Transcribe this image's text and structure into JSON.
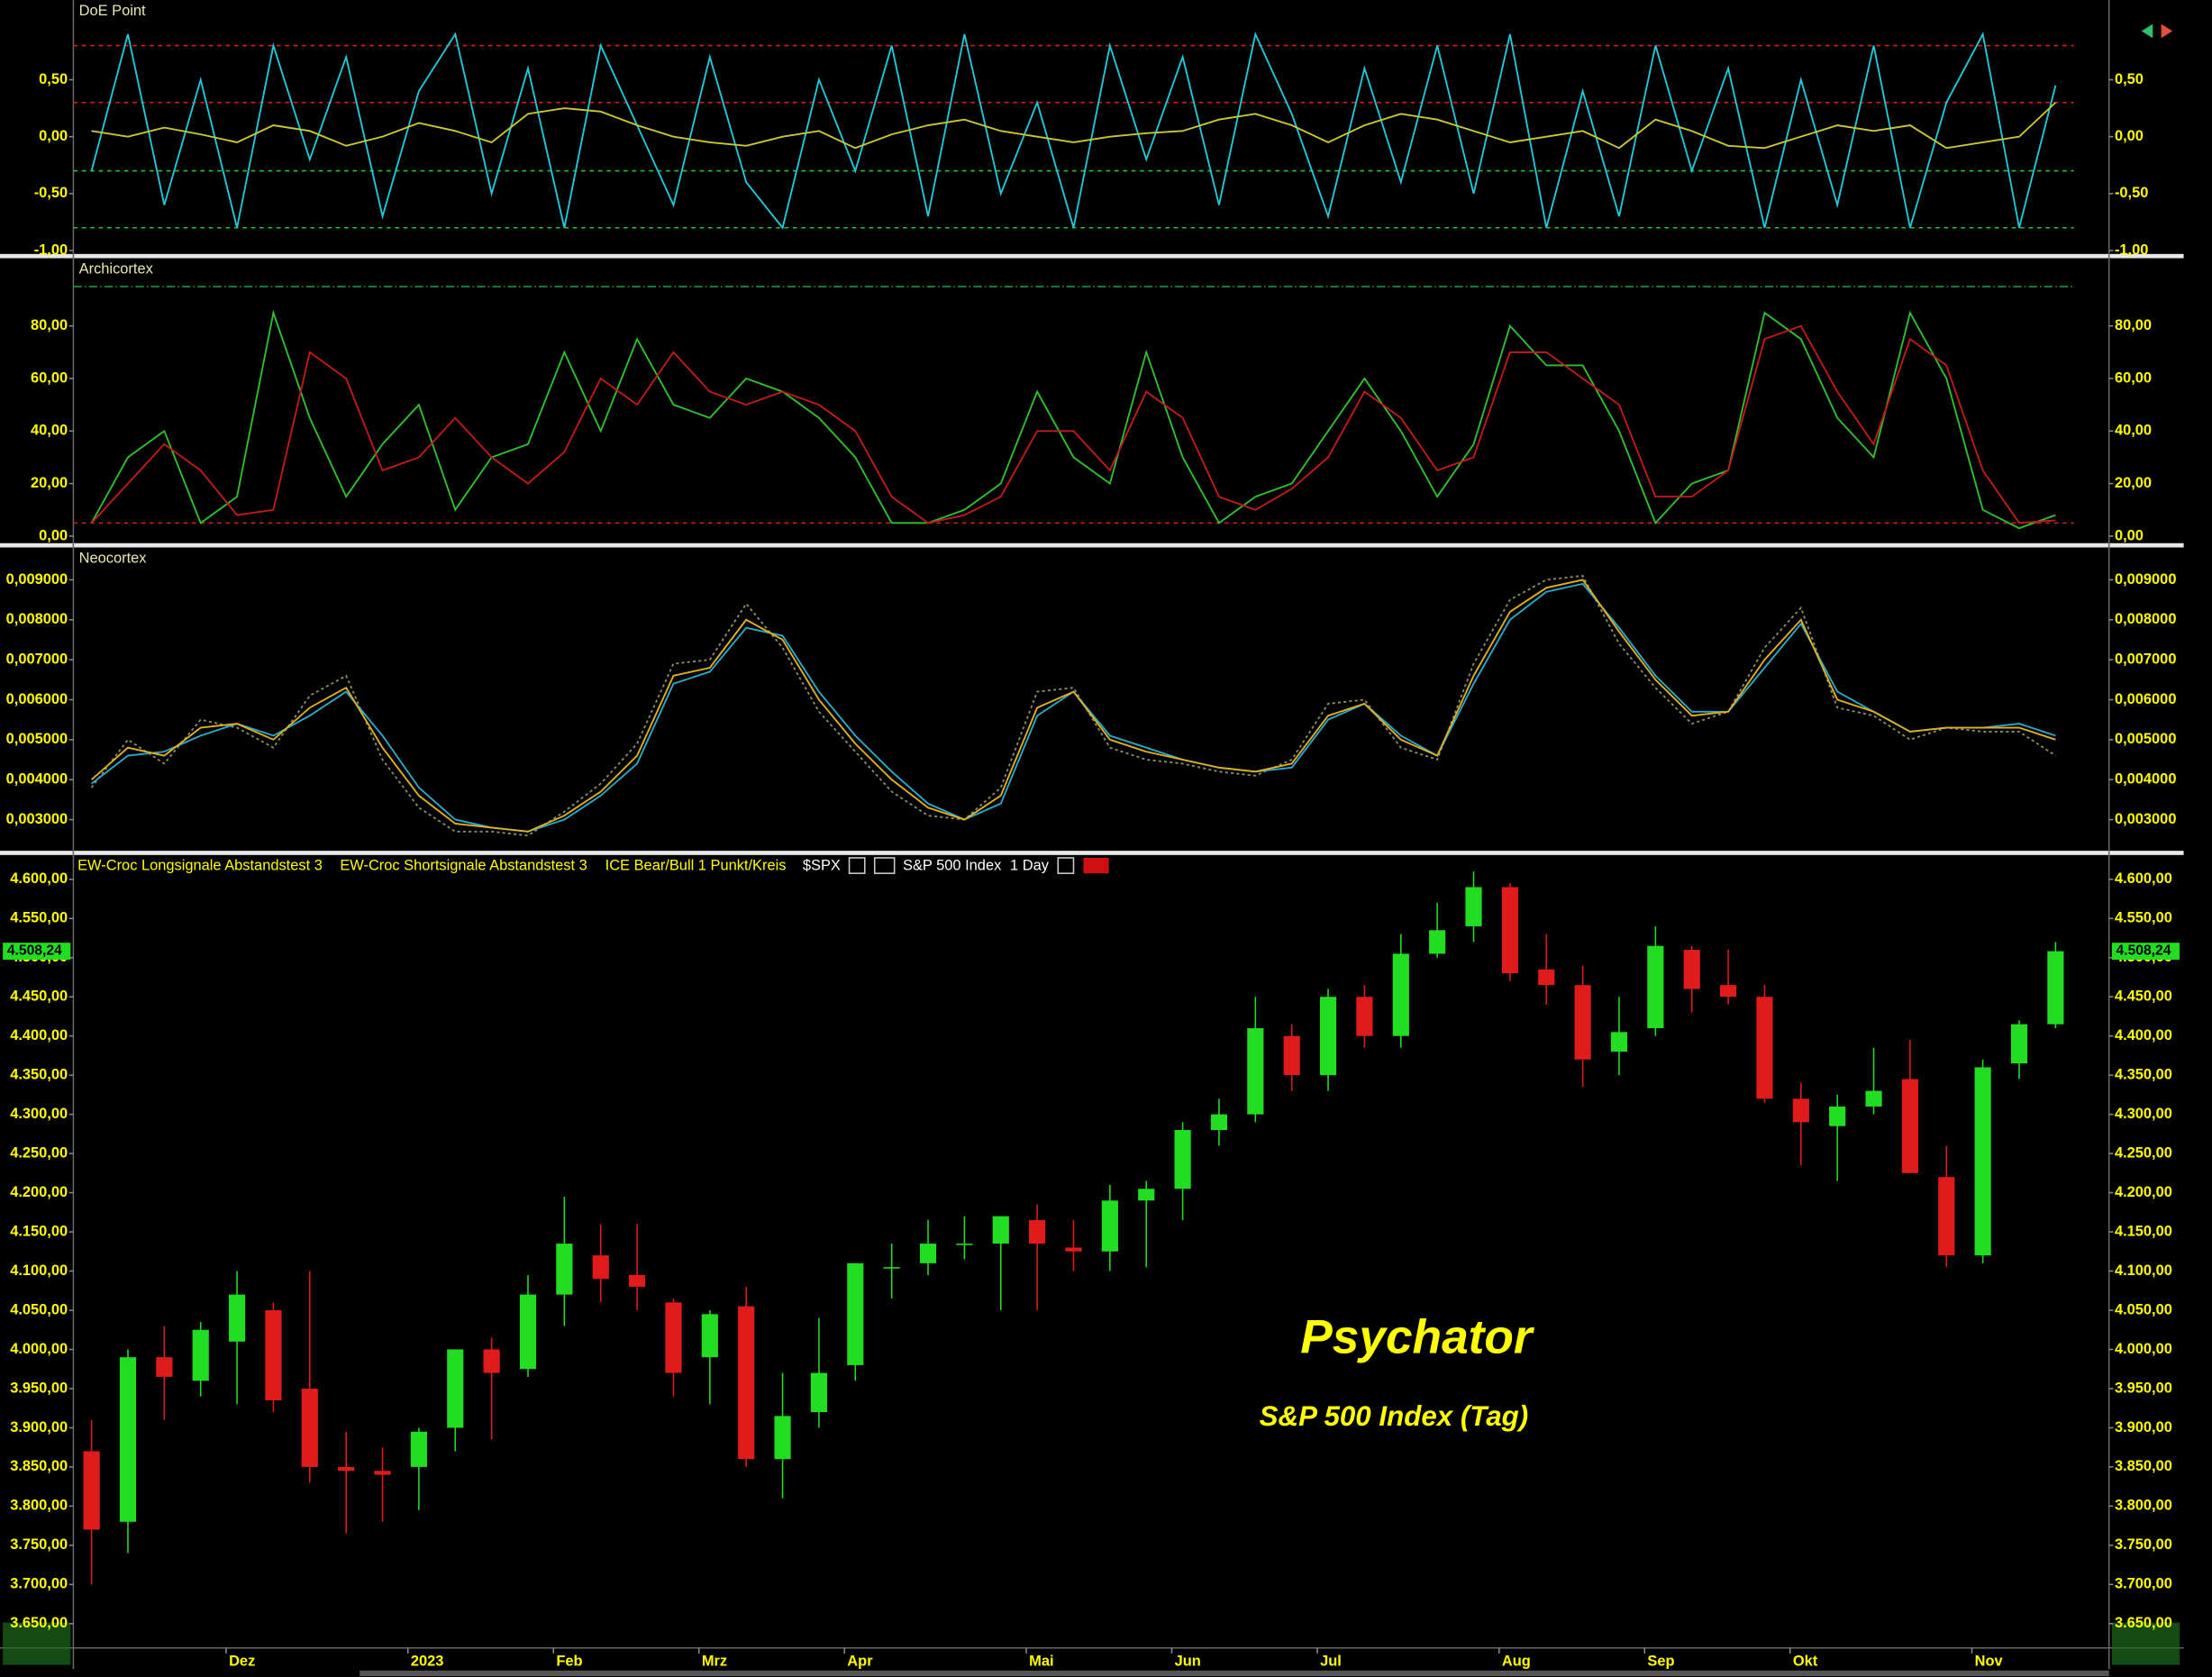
{
  "chart_data": [
    {
      "type": "line",
      "title": "DoE Point",
      "ylim": [
        -1.03,
        1.2
      ],
      "yticks": [
        {
          "value": -1,
          "label": "-1,00"
        },
        {
          "value": -0.5,
          "label": "-0,50"
        },
        {
          "value": 0,
          "label": "0,00"
        },
        {
          "value": 0.5,
          "label": "0,50"
        }
      ],
      "levels": [
        {
          "value": 0.8,
          "color": "#d02020"
        },
        {
          "value": 0.3,
          "color": "#d02020"
        },
        {
          "value": -0.3,
          "color": "#20c040"
        },
        {
          "value": -0.8,
          "color": "#20c040"
        }
      ],
      "series": [
        {
          "color": "#22c7d8",
          "values": [
            -0.3,
            0.9,
            -0.6,
            0.5,
            -0.8,
            0.8,
            -0.2,
            0.7,
            -0.7,
            0.4,
            0.9,
            -0.5,
            0.6,
            -0.8,
            0.8,
            0.1,
            -0.6,
            0.7,
            -0.4,
            -0.8,
            0.5,
            -0.3,
            0.8,
            -0.7,
            0.9,
            -0.5,
            0.3,
            -0.8,
            0.8,
            -0.2,
            0.7,
            -0.6,
            0.9,
            0.2,
            -0.7,
            0.6,
            -0.4,
            0.8,
            -0.5,
            0.9,
            -0.8,
            0.4,
            -0.7,
            0.8,
            -0.3,
            0.6,
            -0.8,
            0.5,
            -0.6,
            0.8,
            -0.8,
            0.3,
            0.9,
            -0.8,
            0.45
          ]
        },
        {
          "color": "#c8c832",
          "values": [
            0.05,
            0.0,
            0.08,
            0.02,
            -0.05,
            0.1,
            0.05,
            -0.08,
            0.0,
            0.12,
            0.05,
            -0.05,
            0.2,
            0.25,
            0.22,
            0.1,
            0.0,
            -0.05,
            -0.08,
            0.0,
            0.05,
            -0.1,
            0.02,
            0.1,
            0.15,
            0.05,
            0.0,
            -0.05,
            0.0,
            0.03,
            0.05,
            0.15,
            0.2,
            0.1,
            -0.05,
            0.1,
            0.2,
            0.15,
            0.05,
            -0.05,
            0.0,
            0.05,
            -0.1,
            0.15,
            0.05,
            -0.08,
            -0.1,
            0.0,
            0.1,
            0.05,
            0.1,
            -0.1,
            -0.05,
            0.0,
            0.3
          ]
        }
      ]
    },
    {
      "type": "line",
      "title": "Archicortex",
      "ylim": [
        -2.7,
        105.8
      ],
      "yticks": [
        {
          "value": 0,
          "label": "0,00"
        },
        {
          "value": 20,
          "label": "20,00"
        },
        {
          "value": 40,
          "label": "40,00"
        },
        {
          "value": 60,
          "label": "60,00"
        },
        {
          "value": 80,
          "label": "80,00"
        }
      ],
      "levels": [
        {
          "value": 95,
          "color": "#20a040"
        },
        {
          "value": 5,
          "color": "#d02020"
        }
      ],
      "series": [
        {
          "color": "#2fbf2f",
          "values": [
            5,
            30,
            40,
            5,
            15,
            85,
            45,
            15,
            35,
            50,
            10,
            30,
            35,
            70,
            40,
            75,
            50,
            45,
            60,
            55,
            45,
            30,
            5,
            5,
            10,
            20,
            55,
            30,
            20,
            70,
            30,
            5,
            15,
            20,
            40,
            60,
            40,
            15,
            35,
            80,
            65,
            65,
            40,
            5,
            20,
            25,
            85,
            75,
            45,
            30,
            85,
            60,
            10,
            3,
            8
          ]
        },
        {
          "color": "#c01b1b",
          "values": [
            5,
            20,
            35,
            25,
            8,
            10,
            70,
            60,
            25,
            30,
            45,
            30,
            20,
            32,
            60,
            50,
            70,
            55,
            50,
            55,
            50,
            40,
            15,
            5,
            8,
            15,
            40,
            40,
            25,
            55,
            45,
            15,
            10,
            18,
            30,
            55,
            45,
            25,
            30,
            70,
            70,
            60,
            50,
            15,
            15,
            25,
            75,
            80,
            55,
            35,
            75,
            65,
            25,
            5,
            6
          ]
        }
      ]
    },
    {
      "type": "line",
      "title": "Neocortex",
      "ylim": [
        0.00222,
        0.00981
      ],
      "yticks": [
        {
          "value": 0.003,
          "label": "0,003000"
        },
        {
          "value": 0.004,
          "label": "0,004000"
        },
        {
          "value": 0.005,
          "label": "0,005000"
        },
        {
          "value": 0.006,
          "label": "0,006000"
        },
        {
          "value": 0.007,
          "label": "0,007000"
        },
        {
          "value": 0.008,
          "label": "0,008000"
        },
        {
          "value": 0.009,
          "label": "0,009000"
        }
      ],
      "series": [
        {
          "color": "#8a8a60",
          "dashed": true,
          "values": [
            0.0038,
            0.005,
            0.0044,
            0.0055,
            0.0053,
            0.0048,
            0.0061,
            0.0066,
            0.0045,
            0.0033,
            0.0027,
            0.0027,
            0.0026,
            0.0032,
            0.0039,
            0.0049,
            0.0069,
            0.007,
            0.0084,
            0.0073,
            0.0057,
            0.0047,
            0.0037,
            0.0031,
            0.003,
            0.0038,
            0.0062,
            0.0063,
            0.0048,
            0.0045,
            0.0044,
            0.0042,
            0.0041,
            0.0045,
            0.0059,
            0.006,
            0.0048,
            0.0045,
            0.0069,
            0.0085,
            0.009,
            0.0091,
            0.0074,
            0.0063,
            0.0054,
            0.0057,
            0.0073,
            0.0083,
            0.0058,
            0.0056,
            0.005,
            0.0053,
            0.0052,
            0.0052,
            0.0046
          ]
        },
        {
          "color": "#2aa9c8",
          "values": [
            0.0039,
            0.0046,
            0.0047,
            0.0051,
            0.0054,
            0.0051,
            0.0056,
            0.0062,
            0.0051,
            0.0038,
            0.003,
            0.0028,
            0.0027,
            0.003,
            0.0036,
            0.0044,
            0.0064,
            0.0067,
            0.0078,
            0.0076,
            0.0062,
            0.0051,
            0.0042,
            0.0034,
            0.003,
            0.0034,
            0.0056,
            0.0062,
            0.0051,
            0.0048,
            0.0045,
            0.0043,
            0.0042,
            0.0043,
            0.0055,
            0.0059,
            0.0051,
            0.0046,
            0.0064,
            0.008,
            0.0087,
            0.0089,
            0.0078,
            0.0066,
            0.0057,
            0.0057,
            0.0068,
            0.0079,
            0.0062,
            0.0057,
            0.0052,
            0.0053,
            0.0053,
            0.0054,
            0.0051
          ]
        },
        {
          "color": "#e0b020",
          "values": [
            0.004,
            0.0048,
            0.0046,
            0.0053,
            0.0054,
            0.005,
            0.0058,
            0.0063,
            0.0048,
            0.0036,
            0.0029,
            0.0028,
            0.0027,
            0.0031,
            0.0037,
            0.0046,
            0.0066,
            0.0068,
            0.008,
            0.0075,
            0.006,
            0.0049,
            0.004,
            0.0033,
            0.003,
            0.0036,
            0.0058,
            0.0062,
            0.005,
            0.0047,
            0.0045,
            0.0043,
            0.0042,
            0.0044,
            0.0056,
            0.0059,
            0.005,
            0.0046,
            0.0066,
            0.0082,
            0.0088,
            0.009,
            0.0077,
            0.0065,
            0.0056,
            0.0057,
            0.007,
            0.008,
            0.006,
            0.0057,
            0.0052,
            0.0053,
            0.0053,
            0.0053,
            0.005
          ]
        }
      ]
    },
    {
      "type": "candlestick",
      "legend": [
        "EW-Croc Longsignale Abstandstest 3",
        "EW-Croc Shortsignale Abstandstest 3",
        "ICE Bear/Bull 1 Punkt/Kreis"
      ],
      "symbol": "$SPX",
      "instrument": "S&P 500 Index",
      "interval": "1 Day",
      "annotation": "Psychator",
      "subtitle": "S&P 500 Index (Tag)",
      "up_color": "#22dd22",
      "down_color": "#e01b1b",
      "ylim": [
        3619,
        4631
      ],
      "yticks": [
        {
          "value": 3650,
          "label": "3.650,00"
        },
        {
          "value": 3700,
          "label": "3.700,00"
        },
        {
          "value": 3750,
          "label": "3.750,00"
        },
        {
          "value": 3800,
          "label": "3.800,00"
        },
        {
          "value": 3850,
          "label": "3.850,00"
        },
        {
          "value": 3900,
          "label": "3.900,00"
        },
        {
          "value": 3950,
          "label": "3.950,00"
        },
        {
          "value": 4000,
          "label": "4.000,00"
        },
        {
          "value": 4050,
          "label": "4.050,00"
        },
        {
          "value": 4100,
          "label": "4.100,00"
        },
        {
          "value": 4150,
          "label": "4.150,00"
        },
        {
          "value": 4200,
          "label": "4.200,00"
        },
        {
          "value": 4250,
          "label": "4.250,00"
        },
        {
          "value": 4300,
          "label": "4.300,00"
        },
        {
          "value": 4350,
          "label": "4.350,00"
        },
        {
          "value": 4400,
          "label": "4.400,00"
        },
        {
          "value": 4450,
          "label": "4.450,00"
        },
        {
          "value": 4500,
          "label": "4.500,00"
        },
        {
          "value": 4550,
          "label": "4.550,00"
        },
        {
          "value": 4600,
          "label": "4.600,00"
        }
      ],
      "last_price": {
        "value": 4508.24,
        "label": "4.508,24"
      },
      "categories": [
        null,
        null,
        null,
        null,
        "Dez",
        null,
        null,
        null,
        null,
        "2023",
        null,
        null,
        null,
        "Feb",
        null,
        null,
        null,
        "Mrz",
        null,
        null,
        null,
        "Apr",
        null,
        null,
        null,
        null,
        "Mai",
        null,
        null,
        null,
        "Jun",
        null,
        null,
        null,
        "Jul",
        null,
        null,
        null,
        null,
        "Aug",
        null,
        null,
        null,
        "Sep",
        null,
        null,
        null,
        "Okt",
        null,
        null,
        null,
        null,
        "Nov",
        null,
        null
      ],
      "open": [
        3870,
        3780,
        3990,
        3960,
        4010,
        4050,
        3950,
        3850,
        3845,
        3850,
        3900,
        4000,
        3975,
        4070,
        4120,
        4095,
        4060,
        3990,
        4055,
        3860,
        3920,
        3980,
        4105,
        4110,
        4135,
        4135,
        4165,
        4130,
        4125,
        4190,
        4205,
        4280,
        4300,
        4400,
        4350,
        4450,
        4400,
        4505,
        4540,
        4590,
        4485,
        4465,
        4380,
        4410,
        4510,
        4465,
        4450,
        4320,
        4285,
        4310,
        4345,
        4220,
        4120,
        4365,
        4415
      ],
      "high": [
        3910,
        4000,
        4030,
        4035,
        4100,
        4060,
        4100,
        3895,
        3875,
        3900,
        4000,
        4015,
        4095,
        4195,
        4160,
        4160,
        4065,
        4050,
        4080,
        3970,
        4040,
        4110,
        4135,
        4165,
        4170,
        4170,
        4185,
        4165,
        4210,
        4215,
        4290,
        4320,
        4450,
        4415,
        4460,
        4465,
        4530,
        4570,
        4610,
        4595,
        4530,
        4490,
        4450,
        4540,
        4515,
        4510,
        4465,
        4340,
        4325,
        4385,
        4395,
        4260,
        4370,
        4420,
        4520
      ],
      "low": [
        3700,
        3740,
        3910,
        3940,
        3930,
        3920,
        3830,
        3765,
        3780,
        3795,
        3870,
        3885,
        3965,
        4030,
        4060,
        4050,
        3940,
        3930,
        3850,
        3810,
        3900,
        3960,
        4065,
        4095,
        4115,
        4050,
        4050,
        4100,
        4100,
        4105,
        4165,
        4260,
        4290,
        4330,
        4330,
        4385,
        4385,
        4500,
        4520,
        4470,
        4440,
        4335,
        4350,
        4400,
        4430,
        4440,
        4315,
        4235,
        4215,
        4300,
        4225,
        4105,
        4110,
        4345,
        4410
      ],
      "close": [
        3770,
        3990,
        3965,
        4025,
        4070,
        3935,
        3850,
        3845,
        3840,
        3895,
        4000,
        3970,
        4070,
        4135,
        4090,
        4080,
        3970,
        4045,
        3860,
        3915,
        3970,
        4110,
        4105,
        4135,
        4135,
        4170,
        4135,
        4125,
        4190,
        4205,
        4280,
        4300,
        4410,
        4350,
        4450,
        4400,
        4505,
        4535,
        4590,
        4480,
        4465,
        4370,
        4405,
        4515,
        4460,
        4450,
        4320,
        4290,
        4310,
        4330,
        4225,
        4120,
        4360,
        4415,
        4508.24
      ]
    }
  ]
}
